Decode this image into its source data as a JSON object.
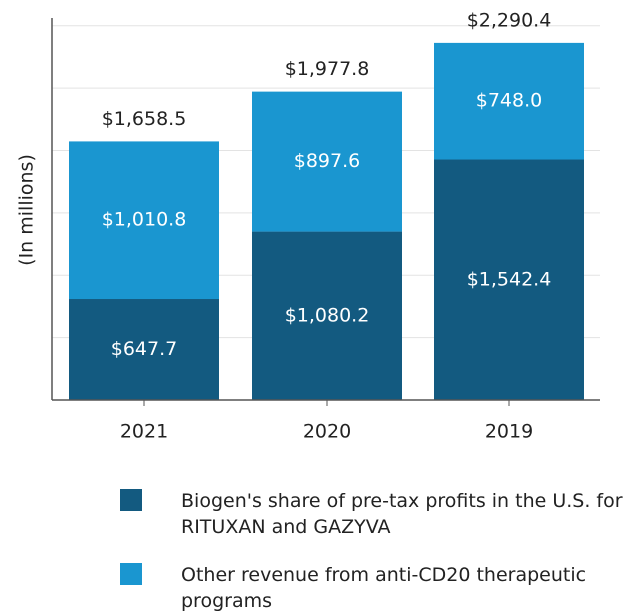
{
  "chart_data": {
    "type": "stacked_bar",
    "y_label": "(In millions)",
    "categories": [
      "2021",
      "2020",
      "2019"
    ],
    "series": [
      {
        "name": "Biogen's share of pre-tax profits in the U.S. for RITUXAN and GAZYVA",
        "color": "#135a80",
        "values": [
          647.7,
          1080.2,
          1542.4
        ],
        "value_labels": [
          "$647.7",
          "$1,080.2",
          "$1,542.4"
        ]
      },
      {
        "name": "Other revenue from anti-CD20 therapeutic programs",
        "color": "#1a96d0",
        "values": [
          1010.8,
          897.6,
          748.0
        ],
        "value_labels": [
          "$1,010.8",
          "$897.6",
          "$748.0"
        ]
      }
    ],
    "total_labels": [
      "$1,658.5",
      "$1,977.8",
      "$2,290.4"
    ],
    "ylim": [
      0,
      2450
    ],
    "yticks": [
      0,
      400,
      800,
      1200,
      1600,
      2000,
      2400
    ],
    "grid": true
  }
}
